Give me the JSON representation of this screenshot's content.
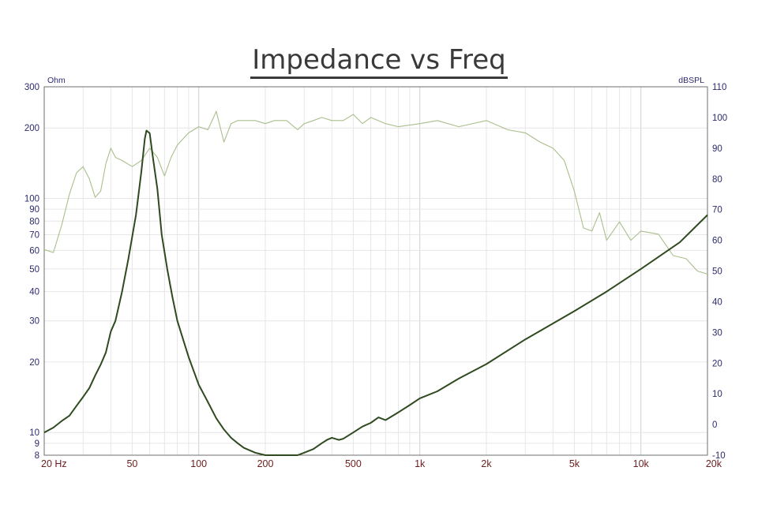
{
  "chart_data": {
    "type": "line",
    "title": "Impedance vs Freq",
    "xscale": "log",
    "xlim": [
      20,
      20000
    ],
    "x_ticks": [
      {
        "value": 20,
        "label": "20 Hz"
      },
      {
        "value": 50,
        "label": "50"
      },
      {
        "value": 100,
        "label": "100"
      },
      {
        "value": 200,
        "label": "200"
      },
      {
        "value": 500,
        "label": "500"
      },
      {
        "value": 1000,
        "label": "1k"
      },
      {
        "value": 2000,
        "label": "2k"
      },
      {
        "value": 5000,
        "label": "5k"
      },
      {
        "value": 10000,
        "label": "10k"
      },
      {
        "value": 20000,
        "label": "20k"
      }
    ],
    "y_left": {
      "unit": "Ohm",
      "scale": "log",
      "range": [
        8,
        300
      ],
      "ticks": [
        8,
        9,
        10,
        20,
        30,
        40,
        50,
        60,
        70,
        80,
        90,
        100,
        200,
        300
      ]
    },
    "y_right": {
      "unit": "dBSPL",
      "scale": "linear",
      "range": [
        -10,
        110
      ],
      "ticks": [
        -10,
        0,
        10,
        20,
        30,
        40,
        50,
        60,
        70,
        80,
        90,
        100,
        110
      ]
    },
    "grid": true,
    "series": [
      {
        "axis": "left",
        "color": "#2f4a1f",
        "x": [
          20,
          22,
          24,
          26,
          28,
          30,
          32,
          34,
          36,
          38,
          40,
          42,
          45,
          48,
          52,
          55,
          57,
          58,
          60,
          62,
          65,
          68,
          72,
          76,
          80,
          85,
          90,
          100,
          110,
          120,
          130,
          140,
          150,
          160,
          180,
          200,
          220,
          250,
          280,
          300,
          330,
          360,
          380,
          400,
          430,
          450,
          500,
          550,
          600,
          650,
          700,
          800,
          900,
          1000,
          1200,
          1500,
          2000,
          3000,
          5000,
          7000,
          10000,
          15000,
          20000
        ],
        "y": [
          10,
          10.5,
          11.2,
          11.8,
          13,
          14.2,
          15.5,
          17.5,
          19.5,
          22,
          27,
          30,
          40,
          55,
          85,
          130,
          180,
          195,
          190,
          150,
          110,
          70,
          50,
          38,
          30,
          25,
          21,
          16,
          13.5,
          11.5,
          10.3,
          9.5,
          9,
          8.6,
          8.2,
          8,
          8,
          8,
          8,
          8.2,
          8.5,
          9,
          9.3,
          9.5,
          9.3,
          9.4,
          10,
          10.6,
          11,
          11.6,
          11.3,
          12.2,
          13.1,
          14,
          15,
          17,
          19.6,
          25,
          33,
          40,
          50,
          65,
          85
        ]
      },
      {
        "axis": "right",
        "color": "#a9bf8c",
        "x": [
          20,
          22,
          24,
          26,
          28,
          30,
          32,
          34,
          36,
          38,
          40,
          42,
          45,
          50,
          55,
          60,
          65,
          70,
          75,
          80,
          90,
          100,
          110,
          120,
          130,
          140,
          150,
          160,
          180,
          200,
          220,
          250,
          280,
          300,
          330,
          360,
          400,
          450,
          500,
          550,
          600,
          700,
          800,
          1000,
          1200,
          1500,
          2000,
          2500,
          3000,
          3500,
          4000,
          4500,
          5000,
          5500,
          6000,
          6500,
          7000,
          8000,
          9000,
          10000,
          12000,
          14000,
          16000,
          18000,
          20000
        ],
        "y": [
          57,
          56,
          65,
          75,
          82,
          84,
          80,
          74,
          76,
          85,
          90,
          87,
          86,
          84,
          86,
          90,
          87,
          81,
          87,
          91,
          95,
          97,
          96,
          102,
          92,
          98,
          99,
          99,
          99,
          98,
          99,
          99,
          96,
          98,
          99,
          100,
          99,
          99,
          101,
          98,
          100,
          98,
          97,
          98,
          99,
          97,
          99,
          96,
          95,
          92,
          90,
          86,
          76,
          64,
          63,
          69,
          60,
          66,
          60,
          63,
          62,
          55,
          54,
          50,
          49
        ]
      }
    ]
  }
}
